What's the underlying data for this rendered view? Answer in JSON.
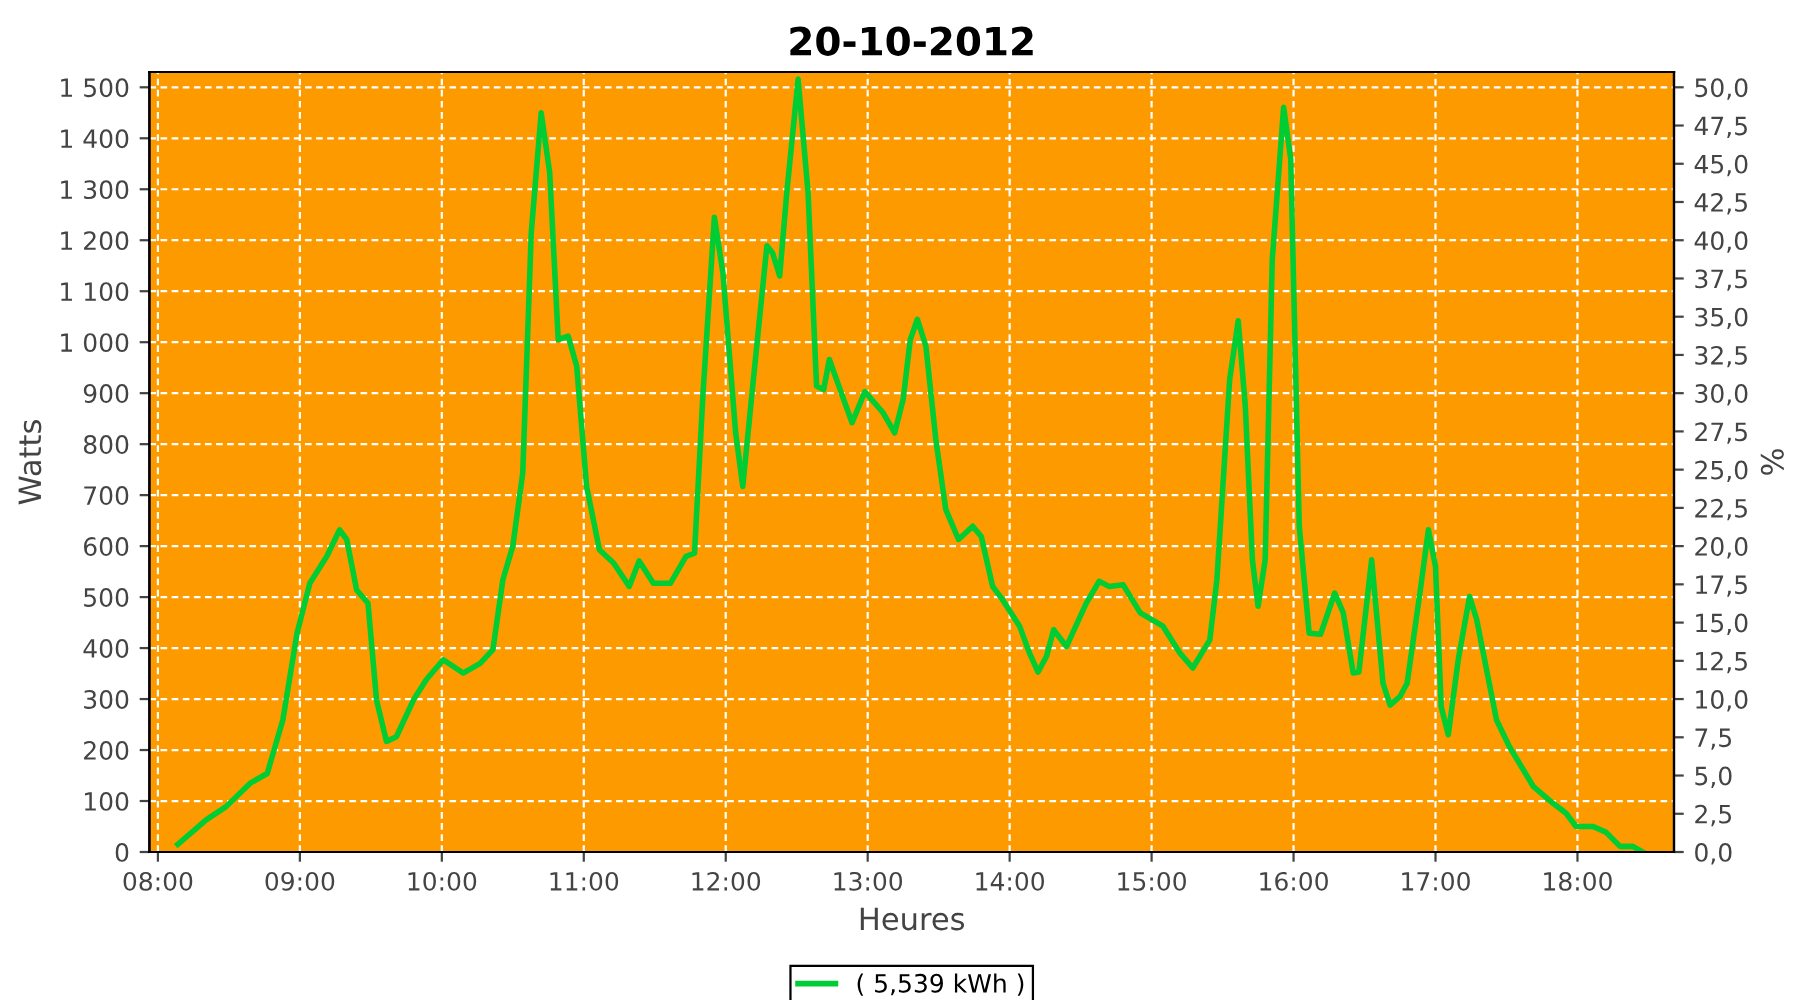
{
  "chart_data": {
    "type": "line",
    "title": "20-10-2012",
    "xlabel": "Heures",
    "ylabel": "Watts",
    "y2label": "%",
    "xlim": [
      7.94,
      18.68
    ],
    "ylim": [
      0,
      1530
    ],
    "y2lim": [
      0,
      51.0
    ],
    "xticks": [
      {
        "value": 8,
        "label": "08:00"
      },
      {
        "value": 9,
        "label": "09:00"
      },
      {
        "value": 10,
        "label": "10:00"
      },
      {
        "value": 11,
        "label": "11:00"
      },
      {
        "value": 12,
        "label": "12:00"
      },
      {
        "value": 13,
        "label": "13:00"
      },
      {
        "value": 14,
        "label": "14:00"
      },
      {
        "value": 15,
        "label": "15:00"
      },
      {
        "value": 16,
        "label": "16:00"
      },
      {
        "value": 17,
        "label": "17:00"
      },
      {
        "value": 18,
        "label": "18:00"
      }
    ],
    "yticks": [
      0,
      100,
      200,
      300,
      400,
      500,
      600,
      700,
      800,
      900,
      {
        "value": 1000,
        "label": "1 000"
      },
      {
        "value": 1100,
        "label": "1 100"
      },
      {
        "value": 1200,
        "label": "1 200"
      },
      {
        "value": 1300,
        "label": "1 300"
      },
      {
        "value": 1400,
        "label": "1 400"
      },
      {
        "value": 1500,
        "label": "1 500"
      }
    ],
    "y2ticks": [
      {
        "value": 0,
        "label": "0,0"
      },
      {
        "value": 2.5,
        "label": "2,5"
      },
      {
        "value": 5,
        "label": "5,0"
      },
      {
        "value": 7.5,
        "label": "7,5"
      },
      {
        "value": 10,
        "label": "10,0"
      },
      {
        "value": 12.5,
        "label": "12,5"
      },
      {
        "value": 15,
        "label": "15,0"
      },
      {
        "value": 17.5,
        "label": "17,5"
      },
      {
        "value": 20,
        "label": "20,0"
      },
      {
        "value": 22.5,
        "label": "22,5"
      },
      {
        "value": 25,
        "label": "25,0"
      },
      {
        "value": 27.5,
        "label": "27,5"
      },
      {
        "value": 30,
        "label": "30,0"
      },
      {
        "value": 32.5,
        "label": "32,5"
      },
      {
        "value": 35,
        "label": "35,0"
      },
      {
        "value": 37.5,
        "label": "37,5"
      },
      {
        "value": 40,
        "label": "40,0"
      },
      {
        "value": 42.5,
        "label": "42,5"
      },
      {
        "value": 45,
        "label": "45,0"
      },
      {
        "value": 47.5,
        "label": "47,5"
      },
      {
        "value": 50,
        "label": "50,0"
      }
    ],
    "grid": true,
    "legend": "bottom",
    "marker": "none",
    "line_style": "solid",
    "series": [
      {
        "name": "( 5,539 kWh )",
        "color": "#00cc33",
        "x": [
          8.14,
          8.34,
          8.48,
          8.65,
          8.77,
          8.88,
          8.98,
          9.07,
          9.19,
          9.28,
          9.33,
          9.4,
          9.48,
          9.54,
          9.61,
          9.68,
          9.8,
          9.89,
          10.01,
          10.15,
          10.27,
          10.36,
          10.43,
          10.5,
          10.57,
          10.63,
          10.7,
          10.76,
          10.82,
          10.89,
          10.95,
          11.02,
          11.11,
          11.21,
          11.32,
          11.39,
          11.49,
          11.61,
          11.72,
          11.78,
          11.84,
          11.92,
          11.98,
          12.07,
          12.12,
          12.19,
          12.29,
          12.33,
          12.38,
          12.43,
          12.51,
          12.58,
          12.64,
          12.69,
          12.73,
          12.78,
          12.89,
          12.98,
          13.11,
          13.19,
          13.25,
          13.3,
          13.35,
          13.41,
          13.48,
          13.55,
          13.64,
          13.74,
          13.8,
          13.88,
          13.95,
          14.07,
          14.14,
          14.2,
          14.26,
          14.31,
          14.4,
          14.54,
          14.63,
          14.7,
          14.8,
          14.92,
          15.08,
          15.2,
          15.29,
          15.41,
          15.46,
          15.55,
          15.61,
          15.66,
          15.71,
          15.75,
          15.8,
          15.85,
          15.93,
          15.98,
          16.04,
          16.11,
          16.19,
          16.29,
          16.35,
          16.42,
          16.46,
          16.55,
          16.63,
          16.68,
          16.75,
          16.8,
          16.89,
          16.95,
          17.0,
          17.04,
          17.09,
          17.16,
          17.24,
          17.29,
          17.36,
          17.43,
          17.52,
          17.69,
          17.83,
          17.92,
          17.99,
          18.11,
          18.2,
          18.3,
          18.39,
          18.46
        ],
        "values": [
          15,
          63,
          89,
          135,
          154,
          259,
          429,
          527,
          580,
          632,
          613,
          514,
          488,
          298,
          217,
          226,
          298,
          338,
          377,
          351,
          370,
          397,
          534,
          600,
          743,
          1215,
          1450,
          1332,
          1005,
          1012,
          953,
          717,
          593,
          567,
          521,
          571,
          527,
          527,
          580,
          586,
          900,
          1245,
          1136,
          822,
          717,
          914,
          1189,
          1175,
          1130,
          1293,
          1516,
          1293,
          914,
          907,
          966,
          927,
          842,
          903,
          861,
          822,
          888,
          1005,
          1045,
          992,
          809,
          672,
          613,
          639,
          619,
          521,
          495,
          443,
          390,
          353,
          384,
          436,
          403,
          488,
          531,
          521,
          524,
          469,
          443,
          390,
          361,
          416,
          534,
          927,
          1042,
          875,
          573,
          482,
          573,
          1162,
          1461,
          1359,
          639,
          429,
          427,
          508,
          469,
          351,
          353,
          573,
          331,
          288,
          305,
          331,
          508,
          632,
          560,
          285,
          230,
          377,
          501,
          456,
          357,
          259,
          207,
          128,
          95,
          76,
          50,
          50,
          39,
          11,
          11,
          0
        ]
      }
    ]
  }
}
